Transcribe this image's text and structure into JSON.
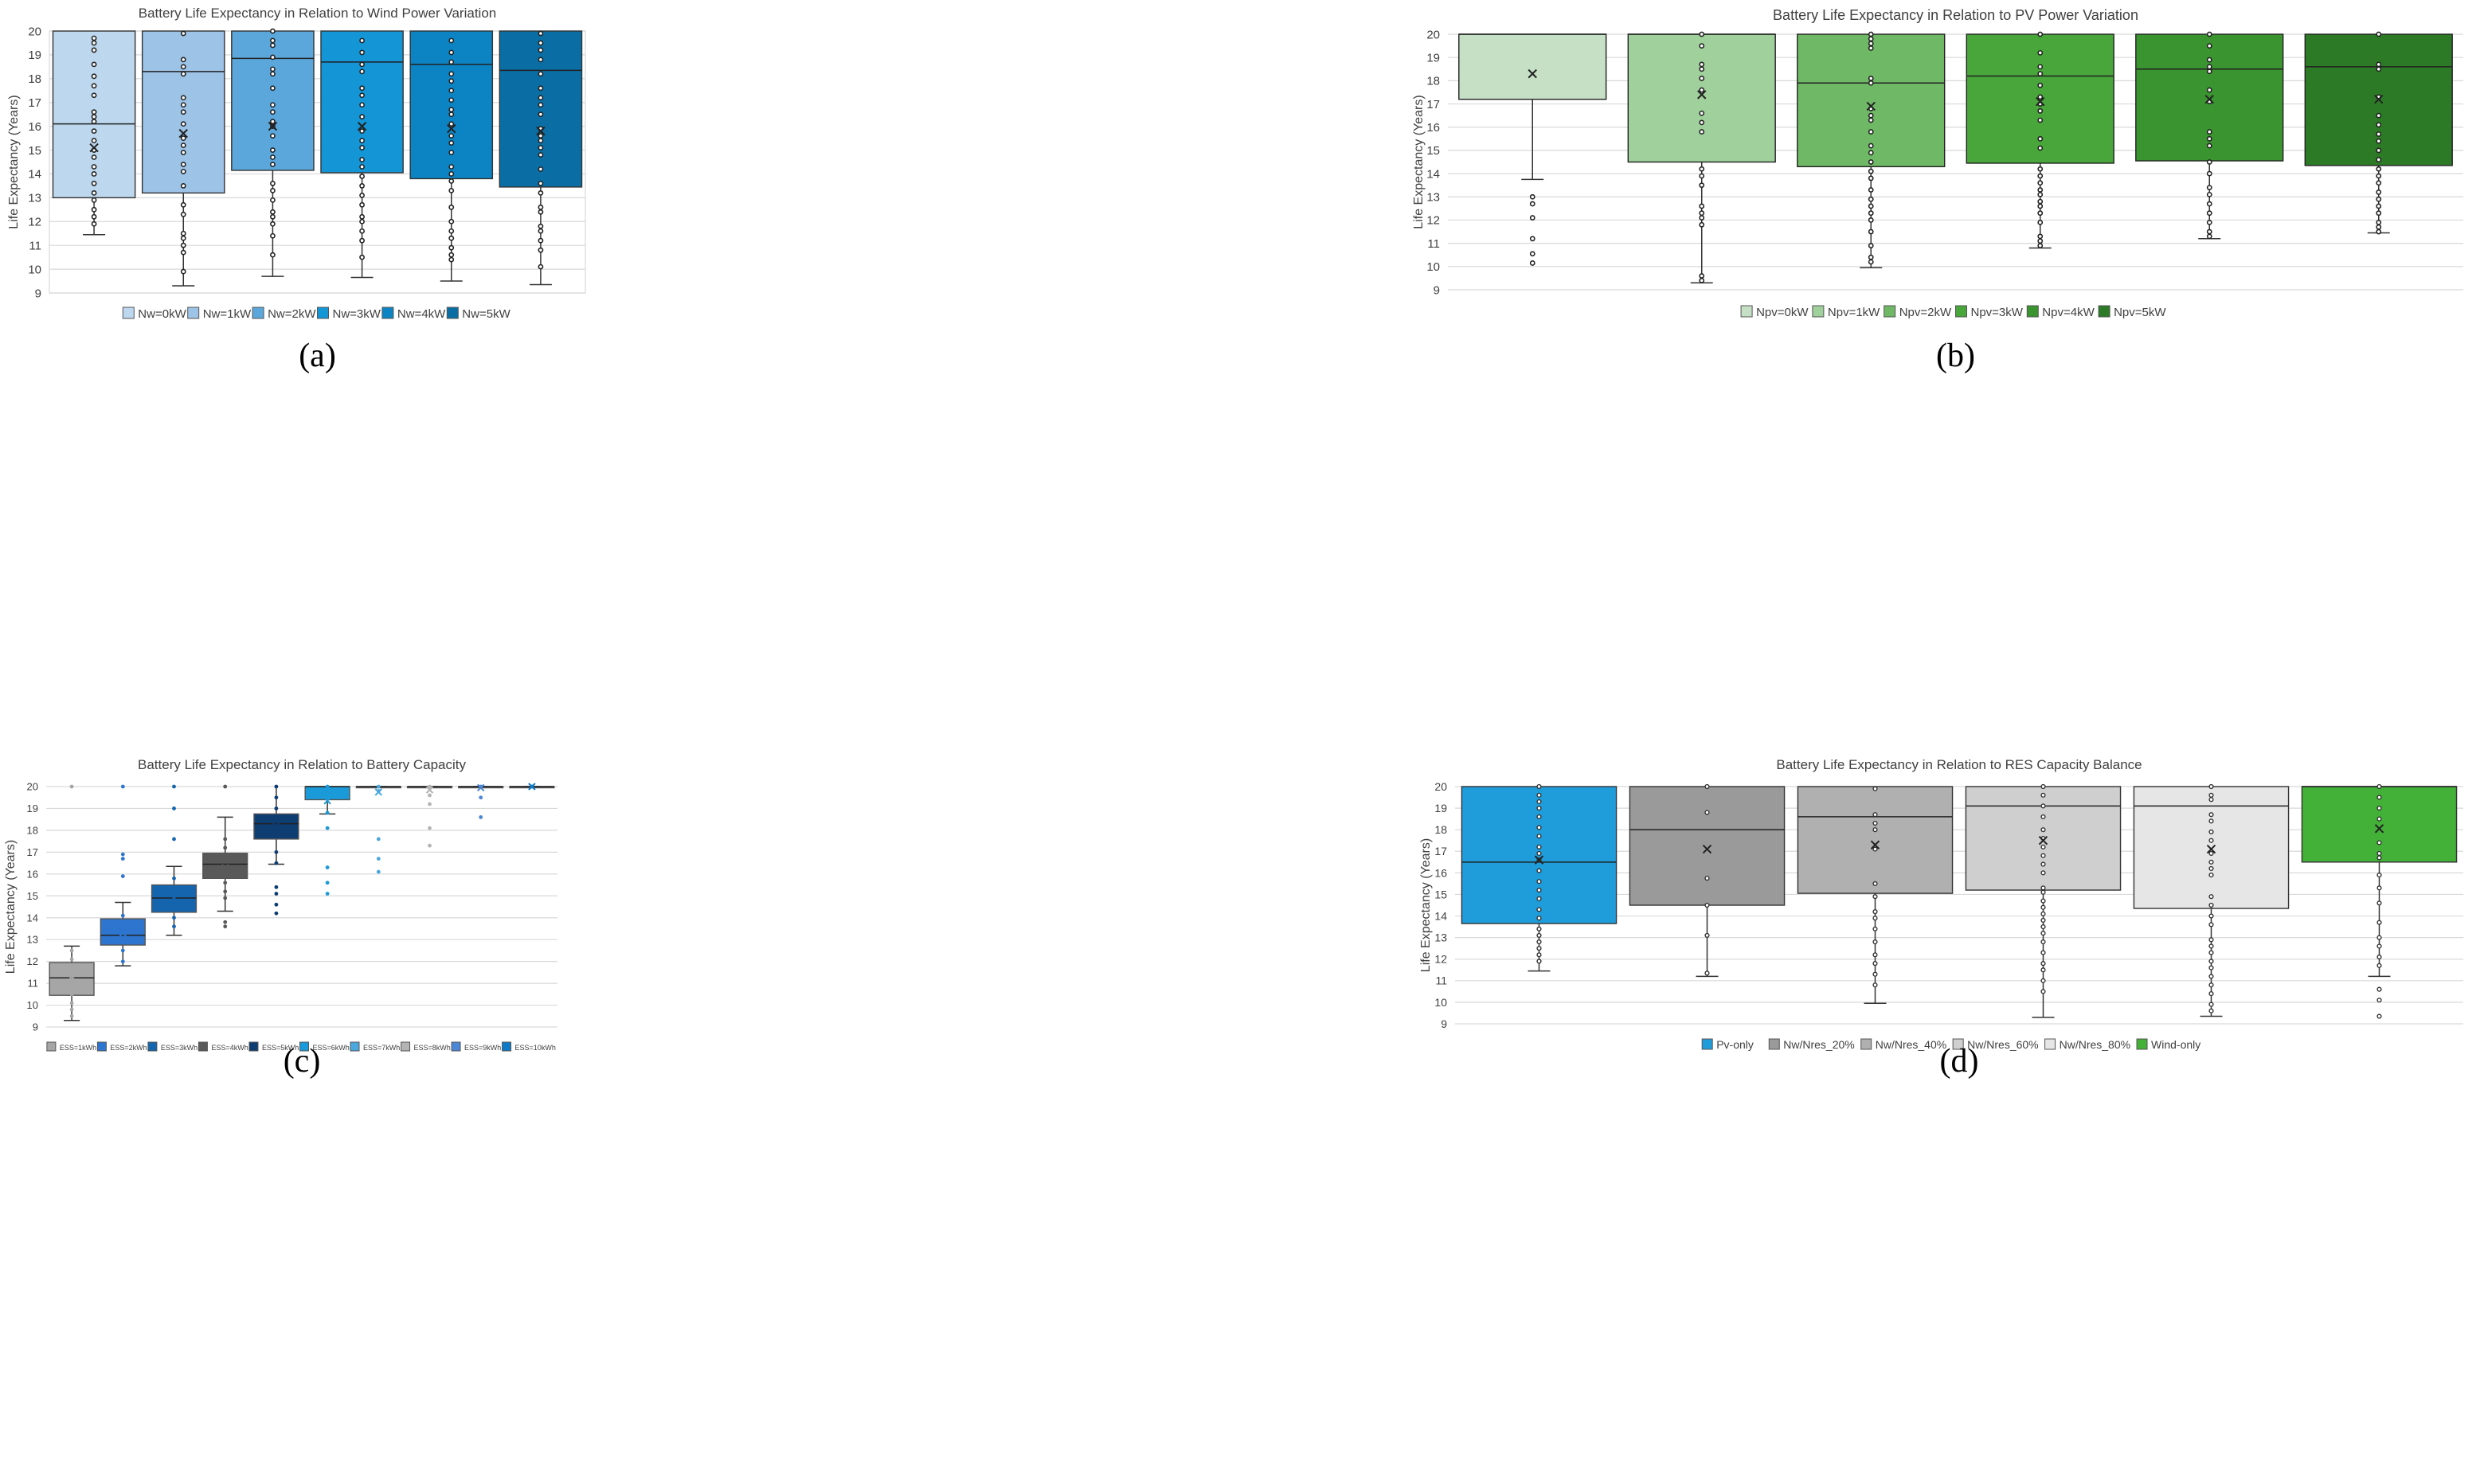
{
  "figure": {
    "panel_labels": [
      "(a)",
      "(b)",
      "(c)",
      "(d)"
    ]
  },
  "chart_data": [
    {
      "id": "a",
      "type": "box",
      "title": "Battery Life Expectancy in Relation to Wind Power Variation",
      "ylabel": "Life Expectancy (Years)",
      "xlabel": "",
      "ylim": [
        9,
        20
      ],
      "yticks": [
        9,
        10,
        11,
        12,
        13,
        14,
        15,
        16,
        17,
        18,
        19,
        20
      ],
      "grid": true,
      "legend_position": "bottom",
      "series": [
        {
          "name": "Nw=0kW",
          "color": "#bdd7ee",
          "min": 11.45,
          "q1": 13.0,
          "median": 16.1,
          "q3": 20.0,
          "max": 20.0,
          "mean": 15.1,
          "points": [
            11.9,
            12.2,
            12.5,
            12.9,
            13.2,
            13.6,
            14.0,
            14.3,
            14.7,
            15.0,
            15.4,
            15.8,
            16.2,
            16.4,
            16.6,
            17.3,
            17.7,
            18.1,
            18.6,
            19.2,
            19.5,
            19.7
          ]
        },
        {
          "name": "Nw=1kW",
          "color": "#9dc3e6",
          "min": 9.3,
          "q1": 13.2,
          "median": 18.3,
          "q3": 20.0,
          "max": 20.0,
          "mean": 15.7,
          "points": [
            9.9,
            10.7,
            11.0,
            11.3,
            11.5,
            12.3,
            12.7,
            13.5,
            14.1,
            14.4,
            14.9,
            15.2,
            15.5,
            16.1,
            16.6,
            16.9,
            17.2,
            18.2,
            18.5,
            18.8,
            19.9
          ]
        },
        {
          "name": "Nw=2kW",
          "color": "#5ba7dc",
          "min": 9.7,
          "q1": 14.15,
          "median": 18.85,
          "q3": 20.0,
          "max": 20.0,
          "mean": 16.0,
          "points": [
            10.6,
            11.4,
            11.9,
            12.2,
            12.4,
            12.9,
            13.3,
            13.6,
            14.4,
            14.7,
            15.0,
            15.6,
            16.0,
            16.2,
            16.6,
            16.9,
            17.6,
            18.2,
            18.4,
            18.9,
            19.4,
            19.6,
            20.0
          ]
        },
        {
          "name": "Nw=3kW",
          "color": "#1495d6",
          "min": 9.65,
          "q1": 14.05,
          "median": 18.7,
          "q3": 20.0,
          "max": 20.0,
          "mean": 16.0,
          "points": [
            10.5,
            11.2,
            11.6,
            12.0,
            12.2,
            12.7,
            13.1,
            13.5,
            13.9,
            14.3,
            14.6,
            15.1,
            15.4,
            15.8,
            16.4,
            16.9,
            17.3,
            17.6,
            18.3,
            18.6,
            19.1,
            19.6
          ]
        },
        {
          "name": "Nw=4kW",
          "color": "#0c84c4",
          "min": 9.5,
          "q1": 13.8,
          "median": 18.6,
          "q3": 20.0,
          "max": 20.0,
          "mean": 15.9,
          "points": [
            10.4,
            10.6,
            10.9,
            11.3,
            11.6,
            12.0,
            12.6,
            13.3,
            13.7,
            14.0,
            14.3,
            14.9,
            15.3,
            15.6,
            16.1,
            16.5,
            16.7,
            17.1,
            17.5,
            17.9,
            18.2,
            18.7,
            19.1,
            19.6
          ]
        },
        {
          "name": "Nw=5kW",
          "color": "#0a6ea4",
          "min": 9.35,
          "q1": 13.45,
          "median": 18.35,
          "q3": 20.0,
          "max": 20.0,
          "mean": 15.8,
          "points": [
            10.1,
            10.8,
            11.2,
            11.6,
            11.8,
            12.4,
            12.6,
            13.2,
            13.6,
            14.2,
            14.8,
            15.1,
            15.4,
            15.6,
            15.9,
            16.5,
            16.9,
            17.2,
            17.6,
            18.2,
            18.8,
            19.2,
            19.5,
            19.9
          ]
        }
      ]
    },
    {
      "id": "b",
      "type": "box",
      "title": "Battery Life Expectancy in Relation to PV Power Variation",
      "ylabel": "Life Expectancy (Years)",
      "xlabel": "",
      "ylim": [
        9,
        20
      ],
      "yticks": [
        9,
        10,
        11,
        12,
        13,
        14,
        15,
        16,
        17,
        18,
        19,
        20
      ],
      "grid": true,
      "legend_position": "bottom",
      "series": [
        {
          "name": "Npv=0kW",
          "color": "#c5e0c5",
          "min": 13.75,
          "q1": 17.2,
          "median": 20.0,
          "q3": 20.0,
          "max": 20.0,
          "mean": 18.3,
          "points": [
            10.15,
            10.55,
            11.2,
            12.1,
            12.7,
            13.0
          ]
        },
        {
          "name": "Npv=1kW",
          "color": "#a0d09b",
          "min": 9.3,
          "q1": 14.5,
          "median": 20.0,
          "q3": 20.0,
          "max": 20.0,
          "mean": 17.4,
          "points": [
            9.4,
            9.6,
            11.8,
            12.1,
            12.3,
            12.6,
            13.5,
            13.9,
            14.2,
            15.8,
            16.2,
            16.6,
            17.6,
            18.1,
            18.5,
            18.7,
            19.5,
            20.0
          ]
        },
        {
          "name": "Npv=2kW",
          "color": "#6fb866",
          "min": 9.95,
          "q1": 14.3,
          "median": 17.9,
          "q3": 20.0,
          "max": 20.0,
          "mean": 16.9,
          "points": [
            10.2,
            10.4,
            10.9,
            11.5,
            12.0,
            12.3,
            12.6,
            12.9,
            13.3,
            13.8,
            14.1,
            14.5,
            14.9,
            15.2,
            15.8,
            16.3,
            16.5,
            16.8,
            17.9,
            18.1,
            19.4,
            19.6,
            19.8,
            20.0
          ]
        },
        {
          "name": "Npv=3kW",
          "color": "#48a63b",
          "min": 10.8,
          "q1": 14.45,
          "median": 18.2,
          "q3": 20.0,
          "max": 20.0,
          "mean": 17.1,
          "points": [
            10.9,
            11.1,
            11.3,
            11.9,
            12.3,
            12.6,
            12.8,
            13.1,
            13.3,
            13.6,
            13.9,
            14.2,
            15.1,
            15.5,
            16.3,
            16.7,
            17.0,
            17.3,
            17.8,
            18.3,
            18.6,
            19.2,
            20.0
          ]
        },
        {
          "name": "Npv=4kW",
          "color": "#3a9430",
          "min": 11.2,
          "q1": 14.55,
          "median": 18.5,
          "q3": 20.0,
          "max": 20.0,
          "mean": 17.2,
          "points": [
            11.3,
            11.5,
            11.9,
            12.3,
            12.7,
            13.1,
            13.4,
            14.0,
            14.5,
            15.2,
            15.5,
            15.8,
            17.1,
            17.6,
            18.4,
            18.6,
            18.9,
            19.5,
            20.0
          ]
        },
        {
          "name": "Npv=5kW",
          "color": "#2c7a26",
          "min": 11.45,
          "q1": 14.35,
          "median": 18.6,
          "q3": 20.0,
          "max": 20.0,
          "mean": 17.2,
          "points": [
            11.5,
            11.7,
            11.9,
            12.3,
            12.6,
            12.9,
            13.2,
            13.6,
            13.9,
            14.2,
            14.6,
            15.0,
            15.4,
            15.7,
            16.1,
            16.5,
            17.3,
            18.5,
            18.7,
            20.0
          ]
        }
      ]
    },
    {
      "id": "c",
      "type": "box",
      "title": "Battery Life Expectancy in Relation to Battery Capacity",
      "ylabel": "Life Expectancy (Years)",
      "xlabel": "",
      "ylim": [
        9,
        20
      ],
      "yticks": [
        9,
        10,
        11,
        12,
        13,
        14,
        15,
        16,
        17,
        18,
        19,
        20
      ],
      "grid": true,
      "legend_position": "bottom",
      "series": [
        {
          "name": "ESS=1kWh",
          "color": "#a6a6a6",
          "min": 9.3,
          "q1": 10.45,
          "median": 11.25,
          "q3": 11.95,
          "max": 12.7,
          "mean": 11.3,
          "points": [
            9.5,
            9.8,
            10.1,
            10.5,
            10.8,
            11.0,
            11.5,
            11.8,
            12.1,
            12.5,
            20.0
          ]
        },
        {
          "name": "ESS=2kWh",
          "color": "#2e75cf",
          "min": 11.8,
          "q1": 12.75,
          "median": 13.2,
          "q3": 13.95,
          "max": 14.7,
          "mean": 13.3,
          "points": [
            12.0,
            12.5,
            13.0,
            13.5,
            13.8,
            14.1,
            15.9,
            16.7,
            16.9,
            20.0
          ]
        },
        {
          "name": "ESS=3kWh",
          "color": "#1565ae",
          "min": 13.2,
          "q1": 14.25,
          "median": 14.9,
          "q3": 15.5,
          "max": 16.35,
          "mean": 14.9,
          "points": [
            13.6,
            14.0,
            14.4,
            14.7,
            15.2,
            15.8,
            17.6,
            19.0,
            20.0
          ]
        },
        {
          "name": "ESS=4kWh",
          "color": "#595959",
          "min": 14.3,
          "q1": 15.8,
          "median": 16.45,
          "q3": 16.95,
          "max": 18.6,
          "mean": 16.3,
          "points": [
            13.6,
            13.8,
            14.9,
            15.2,
            15.6,
            16.0,
            16.6,
            17.2,
            17.6,
            20.0
          ]
        },
        {
          "name": "ESS=5kWh",
          "color": "#0e3d72",
          "min": 16.45,
          "q1": 17.6,
          "median": 18.3,
          "q3": 18.75,
          "max": 20.0,
          "mean": 18.2,
          "points": [
            14.2,
            14.6,
            15.1,
            15.4,
            16.5,
            17.0,
            17.8,
            18.5,
            19.0,
            19.5,
            20.0
          ]
        },
        {
          "name": "ESS=6kWh",
          "color": "#1a9ad9",
          "min": 18.75,
          "q1": 19.4,
          "median": 20.0,
          "q3": 20.0,
          "max": 20.0,
          "mean": 19.35,
          "points": [
            15.1,
            15.6,
            16.3,
            18.1,
            18.8,
            20.0
          ]
        },
        {
          "name": "ESS=7kWh",
          "color": "#4aa8de",
          "min": 20.0,
          "q1": 20.0,
          "median": 20.0,
          "q3": 20.0,
          "max": 20.0,
          "mean": 19.75,
          "points": [
            16.1,
            16.7,
            17.6,
            19.8,
            20.0
          ]
        },
        {
          "name": "ESS=8kWh",
          "color": "#b4b4b4",
          "min": 20.0,
          "q1": 20.0,
          "median": 20.0,
          "q3": 20.0,
          "max": 20.0,
          "mean": 19.85,
          "points": [
            17.3,
            18.1,
            19.2,
            19.6,
            20.0
          ]
        },
        {
          "name": "ESS=9kWh",
          "color": "#4c86d6",
          "min": 20.0,
          "q1": 20.0,
          "median": 20.0,
          "q3": 20.0,
          "max": 20.0,
          "mean": 19.95,
          "points": [
            18.6,
            19.5,
            20.0
          ]
        },
        {
          "name": "ESS=10kWh",
          "color": "#0f7ac6",
          "min": 20.0,
          "q1": 20.0,
          "median": 20.0,
          "q3": 20.0,
          "max": 20.0,
          "mean": 20.0,
          "points": [
            20.0
          ]
        }
      ]
    },
    {
      "id": "d",
      "type": "box",
      "title": "Battery Life Expectancy in Relation to RES Capacity Balance",
      "ylabel": "Life Expectancy (Years)",
      "xlabel": "",
      "ylim": [
        9,
        20
      ],
      "yticks": [
        9,
        10,
        11,
        12,
        13,
        14,
        15,
        16,
        17,
        18,
        19,
        20
      ],
      "grid": true,
      "legend_position": "bottom",
      "series": [
        {
          "name": "Pv-only",
          "color": "#1f9ddb",
          "min": 11.45,
          "q1": 13.65,
          "median": 16.5,
          "q3": 20.0,
          "max": 20.0,
          "mean": 16.6,
          "points": [
            11.9,
            12.2,
            12.5,
            12.8,
            13.1,
            13.4,
            13.9,
            14.3,
            14.8,
            15.2,
            15.6,
            16.1,
            16.6,
            16.9,
            17.2,
            17.7,
            18.1,
            18.6,
            19.0,
            19.3,
            19.6,
            20.0
          ]
        },
        {
          "name": "Nw/Nres_20%",
          "color": "#9a9a9a",
          "min": 11.2,
          "q1": 14.5,
          "median": 18.0,
          "q3": 20.0,
          "max": 20.0,
          "mean": 17.1,
          "points": [
            11.35,
            13.1,
            14.5,
            15.75,
            18.8,
            20.0
          ]
        },
        {
          "name": "Nw/Nres_40%",
          "color": "#b0b0b0",
          "min": 9.95,
          "q1": 15.05,
          "median": 18.6,
          "q3": 20.0,
          "max": 20.0,
          "mean": 17.3,
          "points": [
            10.8,
            11.3,
            11.8,
            12.2,
            12.8,
            13.4,
            13.9,
            14.2,
            14.9,
            15.5,
            17.1,
            18.0,
            18.3,
            18.7,
            19.9
          ]
        },
        {
          "name": "Nw/Nres_60%",
          "color": "#cfcfcf",
          "min": 9.3,
          "q1": 15.2,
          "median": 19.1,
          "q3": 20.0,
          "max": 20.0,
          "mean": 17.5,
          "points": [
            10.5,
            11.0,
            11.5,
            11.8,
            12.3,
            12.8,
            13.2,
            13.5,
            13.8,
            14.1,
            14.4,
            14.7,
            15.1,
            15.3,
            16.0,
            16.4,
            16.8,
            17.2,
            17.6,
            18.0,
            18.6,
            19.1,
            19.6,
            20.0
          ]
        },
        {
          "name": "Nw/Nres_80%",
          "color": "#e6e6e6",
          "min": 9.35,
          "q1": 14.35,
          "median": 19.1,
          "q3": 20.0,
          "max": 20.0,
          "mean": 17.1,
          "points": [
            9.6,
            9.9,
            10.4,
            10.8,
            11.2,
            11.6,
            11.9,
            12.3,
            12.6,
            12.9,
            13.6,
            14.0,
            14.5,
            14.9,
            15.9,
            16.2,
            16.5,
            16.9,
            17.5,
            17.9,
            18.4,
            18.7,
            19.4,
            19.6,
            20.0
          ]
        },
        {
          "name": "Wind-only",
          "color": "#43b038",
          "min": 11.2,
          "q1": 16.5,
          "median": 20.0,
          "q3": 20.0,
          "max": 20.0,
          "mean": 18.05,
          "points": [
            9.35,
            10.1,
            10.6,
            11.7,
            12.1,
            12.6,
            13.0,
            13.7,
            14.6,
            15.3,
            15.9,
            16.7,
            16.9,
            17.4,
            18.5,
            19.0,
            19.5,
            20.0
          ]
        }
      ]
    }
  ]
}
